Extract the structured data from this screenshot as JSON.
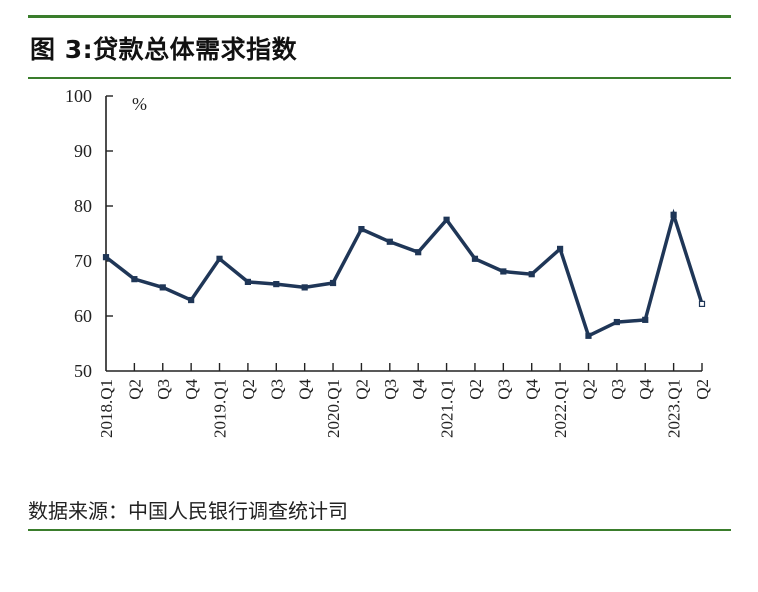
{
  "figure": {
    "title": "图 3:贷款总体需求指数",
    "source": "数据来源：中国人民银行调查统计司",
    "rule_color": "#3a7d2c"
  },
  "chart_data": {
    "type": "line",
    "title": "图 3:贷款总体需求指数",
    "xlabel": "",
    "ylabel": "%",
    "ylim": [
      50,
      100
    ],
    "yticks": [
      50,
      60,
      70,
      80,
      90,
      100
    ],
    "grid": false,
    "legend": null,
    "line_color": "#1f3657",
    "categories": [
      "2018.Q1",
      "Q2",
      "Q3",
      "Q4",
      "2019.Q1",
      "Q2",
      "Q3",
      "Q4",
      "2020.Q1",
      "Q2",
      "Q3",
      "Q4",
      "2021.Q1",
      "Q2",
      "Q3",
      "Q4",
      "2022.Q1",
      "Q2",
      "Q3",
      "Q4",
      "2023.Q1",
      "Q2"
    ],
    "series": [
      {
        "name": "贷款总体需求指数",
        "values": [
          70.7,
          66.7,
          65.2,
          62.9,
          70.4,
          66.2,
          65.8,
          65.2,
          66.0,
          75.8,
          73.5,
          71.6,
          77.5,
          70.4,
          68.1,
          67.6,
          72.2,
          56.4,
          58.9,
          59.3,
          78.4,
          62.2
        ]
      }
    ],
    "unit_label": "%"
  }
}
